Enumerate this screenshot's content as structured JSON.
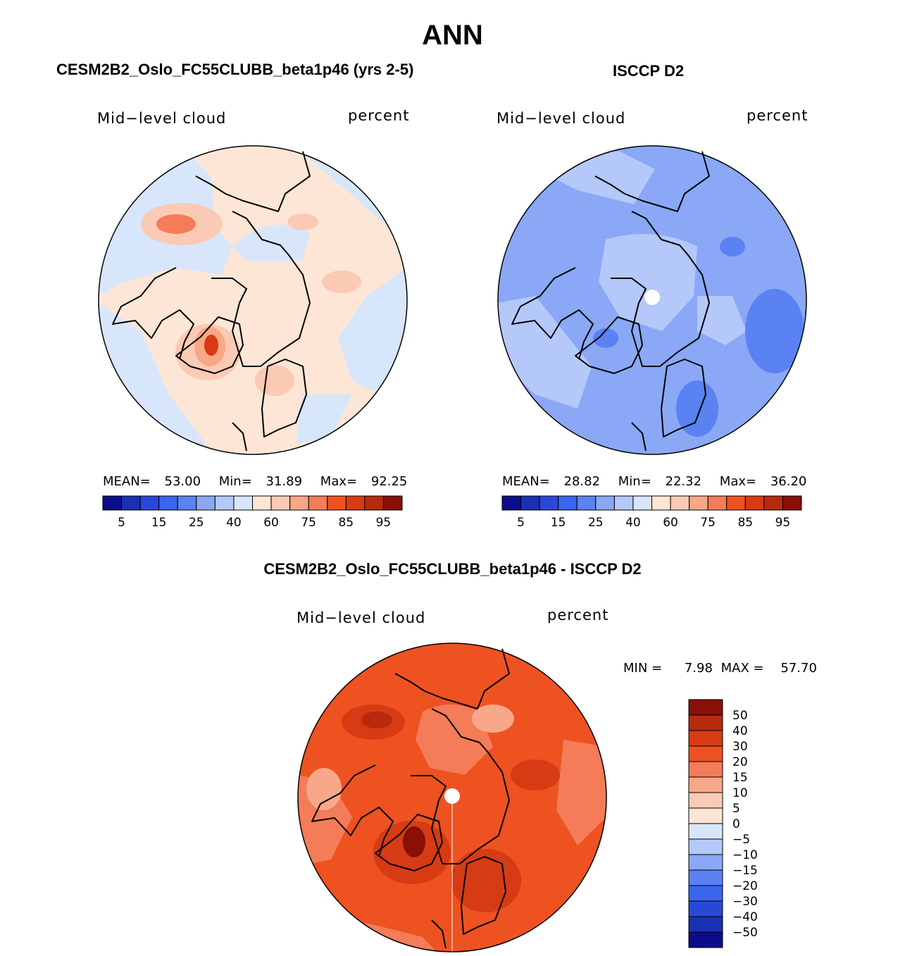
{
  "title": "ANN",
  "panels": {
    "model": {
      "title": "CESM2B2_Oslo_FC55CLUBB_beta1p46 (yrs 2-5)",
      "variable": "Mid−level cloud",
      "units": "percent",
      "stats": {
        "mean_label": "MEAN=",
        "mean": "53.00",
        "min_label": "Min=",
        "min": "31.89",
        "max_label": "Max=",
        "max": "92.25"
      }
    },
    "obs": {
      "title": "ISCCP D2",
      "variable": "Mid−level cloud",
      "units": "percent",
      "stats": {
        "mean_label": "MEAN=",
        "mean": "28.82",
        "min_label": "Min=",
        "min": "22.32",
        "max_label": "Max=",
        "max": "36.20"
      }
    },
    "diff": {
      "title": "CESM2B2_Oslo_FC55CLUBB_beta1p46 - ISCCP D2",
      "variable": "Mid−level cloud",
      "units": "percent",
      "stats": {
        "min_label": "MIN =",
        "min": "7.98",
        "max_label": "MAX =",
        "max": "57.70"
      }
    }
  },
  "chart_data": [
    {
      "type": "heatmap",
      "name": "model-map",
      "title": "CESM2B2_Oslo_FC55CLUBB_beta1p46 (yrs 2-5)",
      "projection": "north-polar-stereographic",
      "variable": "Mid-level cloud",
      "units": "percent",
      "mean": 53.0,
      "min": 31.89,
      "max": 92.25,
      "colorbar": {
        "tick_labels": [
          "5",
          "15",
          "25",
          "40",
          "60",
          "75",
          "85",
          "95"
        ],
        "colors": [
          "#0d0d8c",
          "#1a30b5",
          "#2a48d8",
          "#3a65ee",
          "#5a82f2",
          "#8aa8f6",
          "#b4c8fa",
          "#d8e6fb",
          "#fde6d6",
          "#fbcab4",
          "#f8a888",
          "#f47c58",
          "#ee5220",
          "#d63b14",
          "#b82a0e",
          "#8a0f08"
        ]
      }
    },
    {
      "type": "heatmap",
      "name": "obs-map",
      "title": "ISCCP D2",
      "projection": "north-polar-stereographic",
      "variable": "Mid-level cloud",
      "units": "percent",
      "mean": 28.82,
      "min": 22.32,
      "max": 36.2,
      "colorbar": {
        "tick_labels": [
          "5",
          "15",
          "25",
          "40",
          "60",
          "75",
          "85",
          "95"
        ],
        "colors": [
          "#0d0d8c",
          "#1a30b5",
          "#2a48d8",
          "#3a65ee",
          "#5a82f2",
          "#8aa8f6",
          "#b4c8fa",
          "#d8e6fb",
          "#fde6d6",
          "#fbcab4",
          "#f8a888",
          "#f47c58",
          "#ee5220",
          "#d63b14",
          "#b82a0e",
          "#8a0f08"
        ]
      }
    },
    {
      "type": "heatmap",
      "name": "diff-map",
      "title": "CESM2B2_Oslo_FC55CLUBB_beta1p46 - ISCCP D2",
      "projection": "north-polar-stereographic",
      "variable": "Mid-level cloud",
      "units": "percent",
      "min": 7.98,
      "max": 57.7,
      "colorbar": {
        "tick_labels": [
          "50",
          "40",
          "30",
          "20",
          "15",
          "10",
          "5",
          "0",
          "−5",
          "−10",
          "−15",
          "−20",
          "−30",
          "−40",
          "−50"
        ],
        "colors": [
          "#8a0f08",
          "#b82a0e",
          "#d63b14",
          "#ee5220",
          "#f47c58",
          "#f8a888",
          "#fbcab4",
          "#fde6d6",
          "#d8e6fb",
          "#b4c8fa",
          "#8aa8f6",
          "#5a82f2",
          "#3a65ee",
          "#2a48d8",
          "#1a30b5",
          "#0d0d8c"
        ]
      }
    }
  ]
}
